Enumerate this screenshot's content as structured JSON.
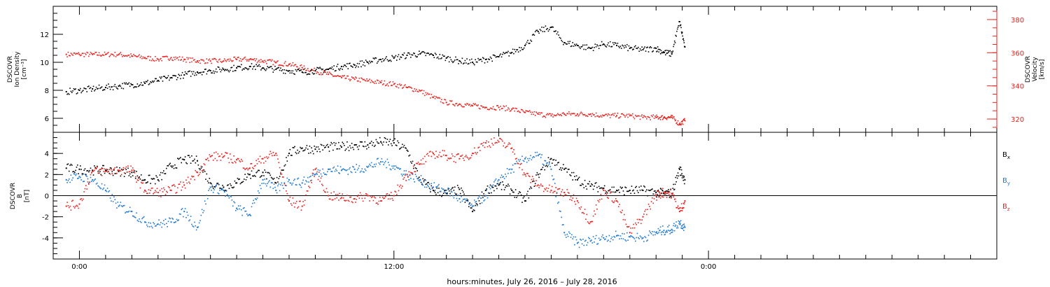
{
  "chart_data": [
    {
      "type": "scatter",
      "panel": "top",
      "ylabel": [
        "DSCOVR",
        "Ion Density",
        "[cm⁻³]"
      ],
      "ylabel_right": [
        "DSCOVR",
        "Velocity",
        "[km/s]"
      ],
      "yticks": [
        6,
        8,
        10,
        12
      ],
      "ylim": [
        5,
        14
      ],
      "yticks_right": [
        320,
        340,
        360,
        380
      ],
      "ylim_right": [
        312,
        388
      ],
      "right_axis_color": "#e8231f",
      "series": [
        {
          "axis": "left",
          "color": "#000000",
          "x": [
            -0.5,
            0,
            0.5,
            1,
            1.5,
            2,
            2.5,
            3,
            3.5,
            4,
            4.5,
            5,
            5.5,
            6,
            6.5,
            7,
            7.5,
            8,
            8.5,
            9,
            9.5,
            10,
            10.5,
            11,
            11.5,
            12,
            12.5,
            13,
            13.5,
            14,
            14.5,
            15,
            15.5,
            16,
            16.5,
            17,
            17.5,
            18,
            18.5,
            19,
            19.5,
            20,
            20.5,
            21,
            21.5,
            22,
            22.3,
            22.6,
            22.9,
            23.1
          ],
          "y": [
            7.9,
            8.0,
            8.1,
            8.2,
            8.3,
            8.4,
            8.5,
            8.7,
            8.9,
            9.1,
            9.3,
            9.4,
            9.5,
            9.6,
            9.7,
            9.6,
            9.5,
            9.4,
            9.3,
            9.4,
            9.5,
            9.7,
            9.8,
            10.0,
            10.2,
            10.3,
            10.5,
            10.6,
            10.5,
            10.3,
            10.1,
            10.0,
            10.2,
            10.4,
            10.7,
            11.2,
            12.2,
            12.5,
            11.4,
            11.2,
            11.0,
            11.3,
            11.2,
            11.0,
            10.9,
            11.0,
            10.7,
            10.6,
            12.9,
            11.1
          ]
        },
        {
          "axis": "right",
          "color": "#e8231f",
          "x": [
            -0.5,
            0,
            0.5,
            1,
            1.5,
            2,
            2.5,
            3,
            3.5,
            4,
            4.5,
            5,
            5.5,
            6,
            6.5,
            7,
            7.5,
            8,
            8.5,
            9,
            9.5,
            10,
            10.5,
            11,
            11.5,
            12,
            12.5,
            13,
            13.5,
            14,
            14.5,
            15,
            15.5,
            16,
            16.5,
            17,
            17.5,
            18,
            18.5,
            19,
            19.5,
            20,
            20.5,
            21,
            21.5,
            22,
            22.3,
            22.6,
            22.9,
            23.1
          ],
          "y": [
            359,
            359,
            359,
            359,
            359,
            358,
            357,
            356,
            357,
            356,
            355,
            355,
            355,
            356,
            356,
            355,
            354,
            353,
            351,
            349,
            347,
            345,
            344,
            343,
            342,
            341,
            339,
            337,
            333,
            330,
            329,
            328,
            327,
            327,
            326,
            324,
            323,
            322,
            323,
            323,
            323,
            322,
            322,
            322,
            321,
            321,
            321,
            321,
            317,
            319
          ]
        }
      ]
    },
    {
      "type": "scatter",
      "panel": "bottom",
      "ylabel": [
        "DSCOVR",
        "B",
        "[nT]"
      ],
      "yticks": [
        -4,
        -2,
        0,
        2,
        4
      ],
      "ylim": [
        -6,
        6
      ],
      "zero_line": true,
      "legend_position": "right",
      "xlim": [
        -1,
        35
      ],
      "xtick_labels": [
        "0:00",
        "12:00",
        "0:00"
      ],
      "xtick_hours": [
        0,
        12,
        24
      ],
      "xlabel": "hours:minutes, July 26, 2016 – July 28, 2016",
      "series": [
        {
          "name": "B",
          "subscript": "x",
          "color": "#000000",
          "x": [
            -0.5,
            0,
            0.5,
            1,
            1.5,
            2,
            2.5,
            3,
            3.5,
            4,
            4.5,
            5,
            5.5,
            6,
            6.5,
            7,
            7.5,
            8,
            8.5,
            9,
            9.5,
            10,
            10.5,
            11,
            11.5,
            12,
            12.5,
            13,
            13.5,
            14,
            14.5,
            15,
            15.5,
            16,
            16.5,
            17,
            17.5,
            18,
            18.5,
            19,
            19.5,
            20,
            20.5,
            21,
            21.5,
            22,
            22.3,
            22.6,
            22.9,
            23.1
          ],
          "y": [
            2.6,
            2.5,
            2.4,
            2.4,
            2.3,
            2.2,
            1.5,
            1.5,
            2.8,
            3.4,
            3.3,
            1.2,
            0.8,
            1.2,
            2.0,
            2.2,
            1.2,
            4.0,
            4.5,
            4.4,
            4.6,
            4.6,
            4.8,
            4.8,
            5.1,
            5.0,
            4.3,
            1.5,
            0.5,
            0.2,
            0.6,
            -1.5,
            0.5,
            1.0,
            0.5,
            -0.5,
            2.0,
            3.5,
            2.5,
            1.5,
            0.9,
            0.7,
            0.5,
            0.5,
            0.5,
            0.3,
            0.2,
            0.2,
            2.5,
            1.5
          ]
        },
        {
          "name": "B",
          "subscript": "y",
          "color": "#1f78d1",
          "x": [
            -0.5,
            0,
            0.5,
            1,
            1.5,
            2,
            2.5,
            3,
            3.5,
            4,
            4.5,
            5,
            5.5,
            6,
            6.5,
            7,
            7.5,
            8,
            8.5,
            9,
            9.5,
            10,
            10.5,
            11,
            11.5,
            12,
            12.5,
            13,
            13.5,
            14,
            14.5,
            15,
            15.5,
            16,
            16.5,
            17,
            17.5,
            18,
            18.5,
            19,
            19.5,
            20,
            20.5,
            21,
            21.5,
            22,
            22.3,
            22.6,
            22.9,
            23.1
          ],
          "y": [
            1.5,
            1.8,
            1.5,
            0.5,
            -1.0,
            -1.5,
            -2.5,
            -2.7,
            -2.5,
            -1.5,
            -3.0,
            0.8,
            0.5,
            -1.2,
            -1.8,
            1.5,
            0.5,
            1.5,
            1.2,
            2.0,
            2.5,
            2.4,
            2.5,
            2.7,
            3.2,
            2.8,
            2.0,
            1.5,
            0.8,
            0.5,
            -0.3,
            -1.0,
            0.0,
            1.5,
            2.5,
            3.5,
            3.8,
            2.5,
            -3.5,
            -4.5,
            -4.3,
            -4.0,
            -3.8,
            -3.9,
            -4.0,
            -3.5,
            -3.3,
            -3.2,
            -2.5,
            -3.0
          ]
        },
        {
          "name": "B",
          "subscript": "z",
          "color": "#e8231f",
          "x": [
            -0.5,
            0,
            0.5,
            1,
            1.5,
            2,
            2.5,
            3,
            3.5,
            4,
            4.5,
            5,
            5.5,
            6,
            6.5,
            7,
            7.5,
            8,
            8.5,
            9,
            9.5,
            10,
            10.5,
            11,
            11.5,
            12,
            12.5,
            13,
            13.5,
            14,
            14.5,
            15,
            15.5,
            16,
            16.5,
            17,
            17.5,
            18,
            18.5,
            19,
            19.5,
            20,
            20.5,
            21,
            21.5,
            22,
            22.3,
            22.6,
            22.9,
            23.1
          ],
          "y": [
            -1.0,
            -0.8,
            2.3,
            2.3,
            2.4,
            2.4,
            0.5,
            0.3,
            0.5,
            1.0,
            2.2,
            3.7,
            3.7,
            3.4,
            2.6,
            3.5,
            4.0,
            -0.5,
            -1.0,
            2.5,
            0.0,
            -0.2,
            -0.3,
            0.0,
            -0.5,
            0.0,
            2.0,
            3.0,
            4.0,
            3.8,
            3.5,
            4.0,
            5.0,
            5.1,
            4.5,
            2.0,
            1.0,
            0.5,
            0.3,
            -0.5,
            -2.5,
            0.5,
            -0.5,
            -3.5,
            -2.0,
            0.0,
            0.3,
            0.2,
            -1.5,
            -0.5
          ]
        }
      ]
    }
  ]
}
